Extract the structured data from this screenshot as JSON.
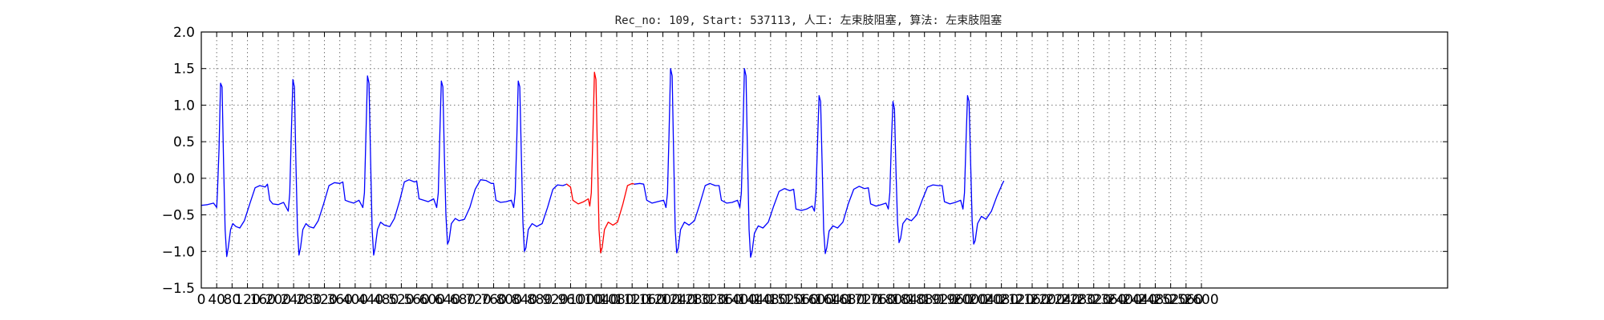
{
  "chart_data": {
    "type": "line",
    "title": "Rec_no: 109, Start: 537113, 人工: 左束肢阻塞, 算法: 左束肢阻塞",
    "xlabel": "",
    "ylabel": "",
    "xlim": [
      0,
      3240
    ],
    "ylim": [
      -1.5,
      2.0
    ],
    "grid": true,
    "x_ticks": [
      0,
      40,
      80,
      120,
      160,
      200,
      240,
      280,
      320,
      360,
      400,
      440,
      480,
      520,
      560,
      600,
      640,
      680,
      720,
      760,
      800,
      840,
      880,
      920,
      960,
      1000,
      1040,
      1080,
      1120,
      1160,
      1200,
      1240,
      1280,
      1320,
      1360,
      1400,
      1440,
      1480,
      1520,
      1560,
      1600,
      1640,
      1680,
      1720,
      1760,
      1800,
      1840,
      1880,
      1920,
      1960,
      2000,
      2040,
      2080,
      2120,
      2160,
      2200,
      2240,
      2280,
      2320,
      2360,
      2400,
      2440,
      2480,
      2520,
      2560,
      2600
    ],
    "y_ticks": [
      -1.5,
      -1.0,
      -0.5,
      0.0,
      0.5,
      1.0,
      1.5,
      2.0
    ],
    "y_tick_labels": [
      "−1.5",
      "−1.0",
      "−0.5",
      "0.0",
      "0.5",
      "1.0",
      "1.5",
      "2.0"
    ],
    "series": [
      {
        "color": "#0000ff",
        "points": [
          [
            0,
            -0.37
          ],
          [
            16,
            -0.36
          ],
          [
            32,
            -0.34
          ],
          [
            40,
            -0.4
          ],
          [
            42,
            -0.2
          ],
          [
            46,
            0.4
          ],
          [
            50,
            1.3
          ],
          [
            54,
            1.25
          ],
          [
            58,
            0.2
          ],
          [
            62,
            -0.7
          ],
          [
            66,
            -1.07
          ],
          [
            70,
            -0.95
          ],
          [
            76,
            -0.7
          ],
          [
            82,
            -0.62
          ],
          [
            90,
            -0.66
          ],
          [
            100,
            -0.68
          ],
          [
            112,
            -0.58
          ],
          [
            126,
            -0.35
          ],
          [
            140,
            -0.13
          ],
          [
            152,
            -0.1
          ],
          [
            166,
            -0.12
          ],
          [
            172,
            -0.08
          ],
          [
            178,
            -0.3
          ],
          [
            186,
            -0.35
          ],
          [
            200,
            -0.36
          ],
          [
            214,
            -0.33
          ],
          [
            226,
            -0.45
          ],
          [
            230,
            -0.2
          ],
          [
            234,
            0.6
          ],
          [
            238,
            1.35
          ],
          [
            242,
            1.25
          ],
          [
            246,
            0.2
          ],
          [
            250,
            -0.7
          ],
          [
            254,
            -1.05
          ],
          [
            258,
            -0.95
          ],
          [
            264,
            -0.7
          ],
          [
            272,
            -0.62
          ],
          [
            280,
            -0.66
          ],
          [
            292,
            -0.68
          ],
          [
            304,
            -0.58
          ],
          [
            318,
            -0.35
          ],
          [
            332,
            -0.1
          ],
          [
            346,
            -0.06
          ],
          [
            360,
            -0.07
          ],
          [
            368,
            -0.05
          ],
          [
            374,
            -0.3
          ],
          [
            384,
            -0.32
          ],
          [
            396,
            -0.34
          ],
          [
            410,
            -0.3
          ],
          [
            420,
            -0.4
          ],
          [
            424,
            -0.2
          ],
          [
            428,
            0.6
          ],
          [
            432,
            1.4
          ],
          [
            436,
            1.3
          ],
          [
            440,
            0.3
          ],
          [
            444,
            -0.7
          ],
          [
            448,
            -1.05
          ],
          [
            452,
            -0.95
          ],
          [
            458,
            -0.7
          ],
          [
            466,
            -0.6
          ],
          [
            476,
            -0.64
          ],
          [
            490,
            -0.66
          ],
          [
            502,
            -0.55
          ],
          [
            516,
            -0.3
          ],
          [
            528,
            -0.05
          ],
          [
            540,
            -0.02
          ],
          [
            554,
            -0.05
          ],
          [
            560,
            -0.04
          ],
          [
            566,
            -0.28
          ],
          [
            578,
            -0.3
          ],
          [
            590,
            -0.32
          ],
          [
            604,
            -0.28
          ],
          [
            612,
            -0.4
          ],
          [
            616,
            -0.2
          ],
          [
            620,
            0.6
          ],
          [
            624,
            1.33
          ],
          [
            628,
            1.25
          ],
          [
            632,
            0.3
          ],
          [
            636,
            -0.5
          ],
          [
            640,
            -0.9
          ],
          [
            644,
            -0.85
          ],
          [
            650,
            -0.62
          ],
          [
            660,
            -0.55
          ],
          [
            670,
            -0.58
          ],
          [
            684,
            -0.56
          ],
          [
            698,
            -0.4
          ],
          [
            712,
            -0.15
          ],
          [
            726,
            -0.02
          ],
          [
            740,
            -0.03
          ],
          [
            754,
            -0.07
          ],
          [
            760,
            -0.07
          ],
          [
            766,
            -0.3
          ],
          [
            778,
            -0.33
          ],
          [
            792,
            -0.32
          ],
          [
            806,
            -0.3
          ],
          [
            812,
            -0.4
          ],
          [
            816,
            -0.2
          ],
          [
            820,
            0.5
          ],
          [
            824,
            1.33
          ],
          [
            828,
            1.25
          ],
          [
            832,
            0.3
          ],
          [
            836,
            -0.6
          ],
          [
            840,
            -1.0
          ],
          [
            844,
            -0.95
          ],
          [
            850,
            -0.7
          ],
          [
            860,
            -0.62
          ],
          [
            872,
            -0.66
          ],
          [
            886,
            -0.62
          ],
          [
            900,
            -0.4
          ],
          [
            914,
            -0.15
          ],
          [
            926,
            -0.09
          ],
          [
            940,
            -0.1
          ],
          [
            950,
            -0.08
          ]
        ]
      },
      {
        "color": "#ff0000",
        "points": [
          [
            950,
            -0.08
          ],
          [
            960,
            -0.12
          ],
          [
            966,
            -0.3
          ],
          [
            980,
            -0.35
          ],
          [
            994,
            -0.32
          ],
          [
            1006,
            -0.28
          ],
          [
            1010,
            -0.38
          ],
          [
            1014,
            -0.2
          ],
          [
            1018,
            0.6
          ],
          [
            1022,
            1.45
          ],
          [
            1026,
            1.35
          ],
          [
            1030,
            0.3
          ],
          [
            1034,
            -0.7
          ],
          [
            1038,
            -1.02
          ],
          [
            1042,
            -0.95
          ],
          [
            1048,
            -0.7
          ],
          [
            1058,
            -0.6
          ],
          [
            1070,
            -0.64
          ],
          [
            1082,
            -0.6
          ],
          [
            1096,
            -0.35
          ],
          [
            1108,
            -0.1
          ],
          [
            1120,
            -0.07
          ],
          [
            1126,
            -0.08
          ]
        ]
      },
      {
        "color": "#0000ff",
        "points": [
          [
            1126,
            -0.08
          ],
          [
            1140,
            -0.07
          ],
          [
            1150,
            -0.08
          ],
          [
            1158,
            -0.3
          ],
          [
            1172,
            -0.34
          ],
          [
            1186,
            -0.32
          ],
          [
            1202,
            -0.3
          ],
          [
            1208,
            -0.4
          ],
          [
            1212,
            -0.2
          ],
          [
            1216,
            0.6
          ],
          [
            1220,
            1.5
          ],
          [
            1224,
            1.4
          ],
          [
            1228,
            0.3
          ],
          [
            1232,
            -0.7
          ],
          [
            1236,
            -1.02
          ],
          [
            1240,
            -0.95
          ],
          [
            1246,
            -0.7
          ],
          [
            1256,
            -0.6
          ],
          [
            1268,
            -0.64
          ],
          [
            1282,
            -0.58
          ],
          [
            1296,
            -0.35
          ],
          [
            1310,
            -0.1
          ],
          [
            1322,
            -0.07
          ],
          [
            1336,
            -0.1
          ],
          [
            1346,
            -0.1
          ],
          [
            1352,
            -0.3
          ],
          [
            1366,
            -0.34
          ],
          [
            1380,
            -0.33
          ],
          [
            1394,
            -0.3
          ],
          [
            1400,
            -0.4
          ],
          [
            1404,
            -0.2
          ],
          [
            1408,
            0.6
          ],
          [
            1412,
            1.5
          ],
          [
            1416,
            1.4
          ],
          [
            1420,
            0.3
          ],
          [
            1424,
            -0.7
          ],
          [
            1428,
            -1.08
          ],
          [
            1432,
            -1.0
          ],
          [
            1438,
            -0.75
          ],
          [
            1448,
            -0.65
          ],
          [
            1460,
            -0.68
          ],
          [
            1474,
            -0.6
          ],
          [
            1488,
            -0.38
          ],
          [
            1502,
            -0.18
          ],
          [
            1516,
            -0.14
          ],
          [
            1530,
            -0.17
          ],
          [
            1540,
            -0.15
          ],
          [
            1546,
            -0.42
          ],
          [
            1560,
            -0.44
          ],
          [
            1574,
            -0.42
          ],
          [
            1588,
            -0.38
          ],
          [
            1594,
            -0.45
          ],
          [
            1598,
            -0.2
          ],
          [
            1602,
            0.5
          ],
          [
            1606,
            1.13
          ],
          [
            1610,
            1.05
          ],
          [
            1614,
            0.2
          ],
          [
            1618,
            -0.7
          ],
          [
            1622,
            -1.03
          ],
          [
            1626,
            -0.95
          ],
          [
            1632,
            -0.72
          ],
          [
            1642,
            -0.65
          ],
          [
            1654,
            -0.68
          ],
          [
            1668,
            -0.6
          ],
          [
            1682,
            -0.35
          ],
          [
            1696,
            -0.15
          ],
          [
            1710,
            -0.11
          ],
          [
            1724,
            -0.14
          ],
          [
            1734,
            -0.13
          ],
          [
            1740,
            -0.35
          ],
          [
            1754,
            -0.38
          ],
          [
            1768,
            -0.36
          ],
          [
            1780,
            -0.34
          ],
          [
            1786,
            -0.42
          ],
          [
            1790,
            -0.2
          ],
          [
            1794,
            0.5
          ],
          [
            1798,
            1.05
          ],
          [
            1802,
            0.95
          ],
          [
            1806,
            0.1
          ],
          [
            1810,
            -0.6
          ],
          [
            1814,
            -0.88
          ],
          [
            1818,
            -0.82
          ],
          [
            1824,
            -0.62
          ],
          [
            1834,
            -0.55
          ],
          [
            1846,
            -0.58
          ],
          [
            1860,
            -0.5
          ],
          [
            1874,
            -0.3
          ],
          [
            1888,
            -0.12
          ],
          [
            1902,
            -0.09
          ],
          [
            1916,
            -0.1
          ],
          [
            1926,
            -0.1
          ],
          [
            1932,
            -0.32
          ],
          [
            1946,
            -0.35
          ],
          [
            1960,
            -0.33
          ],
          [
            1974,
            -0.3
          ],
          [
            1980,
            -0.42
          ],
          [
            1984,
            -0.2
          ],
          [
            1988,
            0.5
          ],
          [
            1992,
            1.13
          ],
          [
            1996,
            1.05
          ],
          [
            2000,
            0.2
          ],
          [
            2004,
            -0.6
          ],
          [
            2008,
            -0.9
          ],
          [
            2012,
            -0.85
          ],
          [
            2018,
            -0.62
          ],
          [
            2028,
            -0.52
          ],
          [
            2040,
            -0.56
          ],
          [
            2054,
            -0.45
          ],
          [
            2068,
            -0.25
          ],
          [
            2082,
            -0.08
          ],
          [
            2086,
            -0.04
          ]
        ]
      }
    ]
  }
}
